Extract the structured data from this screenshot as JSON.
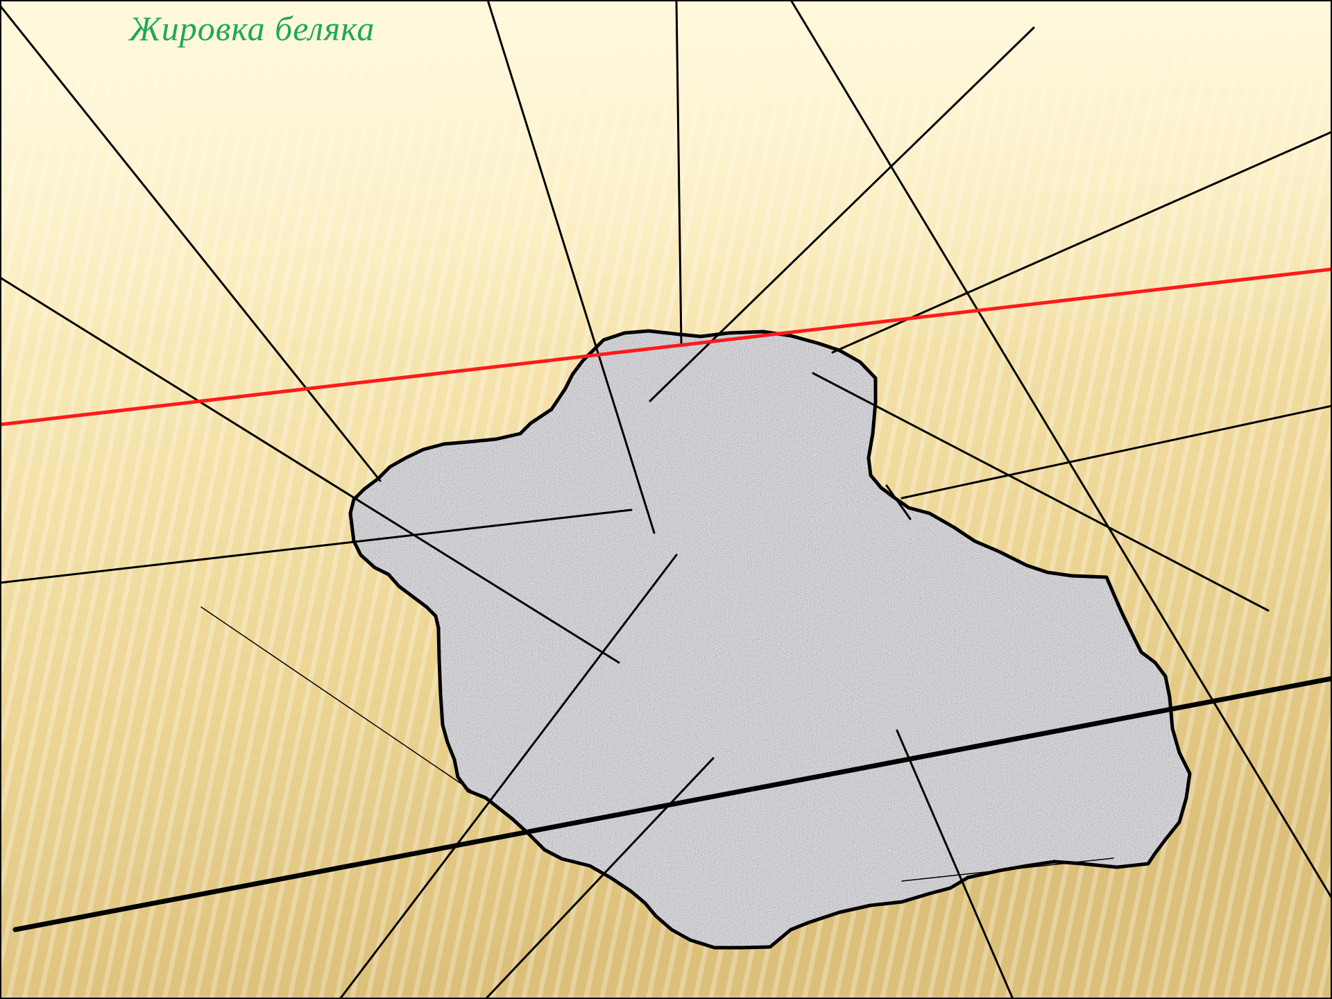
{
  "slide": {
    "title": "Жировка беляка"
  },
  "colors": {
    "title": "#1fa85a",
    "track_line": "#000000",
    "highlight_line": "#ff0000",
    "blob_fill": "#a8a8ab",
    "background_light": "#fdf3cf",
    "background_dark": "#dcc27c"
  },
  "scene": {
    "track_lines_count": 17,
    "highlighted_lines_count": 1
  }
}
